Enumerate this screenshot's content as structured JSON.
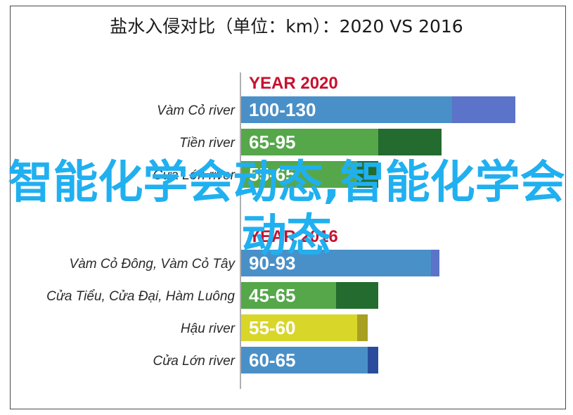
{
  "title": "盐水入侵对比（单位：km）：2020 VS 2016",
  "watermark": "智能化学会动态,智能化学会动态",
  "chart_data": [
    {
      "type": "bar",
      "orientation": "horizontal",
      "title": "YEAR 2020",
      "categories": [
        "Vàm Cỏ river",
        "Tiền river",
        "Cửa Lớn river"
      ],
      "ranges": [
        [
          100,
          130
        ],
        [
          65,
          95
        ],
        [
          55,
          65
        ]
      ],
      "labels": [
        "100-130",
        "65-95",
        "55-65"
      ],
      "colors": [
        "#4a90c8",
        "#55a74a",
        "#55a74a"
      ],
      "end_colors": [
        "#5b73c8",
        "#236b2e",
        "#236b2e"
      ]
    },
    {
      "type": "bar",
      "orientation": "horizontal",
      "title": "YEAR 2016",
      "categories": [
        "Vàm Cỏ Đông, Vàm Cỏ Tây",
        "Cửa Tiểu, Cửa Đại, Hàm Luông",
        "Hậu river",
        "Cửa Lớn river"
      ],
      "ranges": [
        [
          90,
          93
        ],
        [
          45,
          65
        ],
        [
          55,
          60
        ],
        [
          60,
          65
        ]
      ],
      "labels": [
        "90-93",
        "45-65",
        "55-60",
        "60-65"
      ],
      "colors": [
        "#4a90c8",
        "#55a74a",
        "#d9d62a",
        "#4a90c8"
      ],
      "end_colors": [
        "#5b73c8",
        "#236b2e",
        "#a8a020",
        "#2a4c9c"
      ]
    }
  ]
}
